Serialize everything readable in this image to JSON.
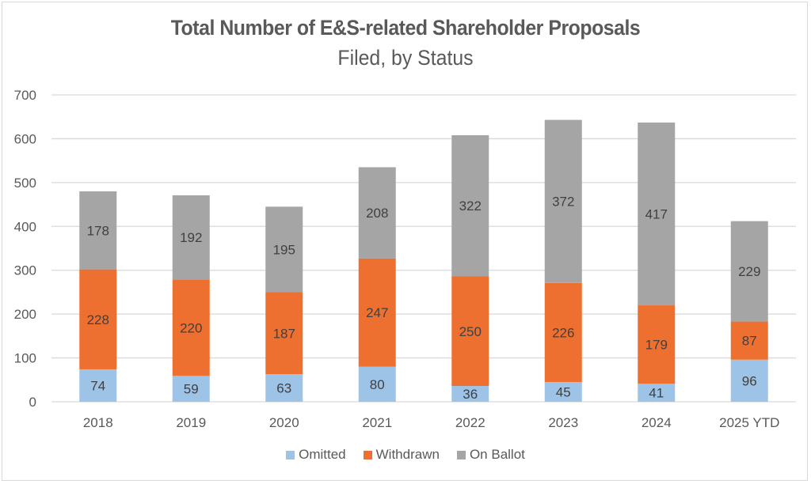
{
  "chart_data": {
    "type": "bar",
    "stacked": true,
    "title": "Total Number of E&S-related Shareholder Proposals",
    "subtitle": "Filed, by Status",
    "xlabel": "",
    "ylabel": "",
    "categories": [
      "2018",
      "2019",
      "2020",
      "2021",
      "2022",
      "2023",
      "2024",
      "2025 YTD"
    ],
    "series": [
      {
        "name": "Omitted",
        "color": "#9dc3e6",
        "values": [
          74,
          59,
          63,
          80,
          36,
          45,
          41,
          96
        ]
      },
      {
        "name": "Withdrawn",
        "color": "#ed7031",
        "values": [
          228,
          220,
          187,
          247,
          250,
          226,
          179,
          87
        ]
      },
      {
        "name": "On Ballot",
        "color": "#a5a5a5",
        "values": [
          178,
          192,
          195,
          208,
          322,
          372,
          417,
          229
        ]
      }
    ],
    "ylim": [
      0,
      700
    ],
    "yticks": [
      0,
      100,
      200,
      300,
      400,
      500,
      600,
      700
    ],
    "grid": true,
    "legend_position": "bottom",
    "data_labels": true
  }
}
